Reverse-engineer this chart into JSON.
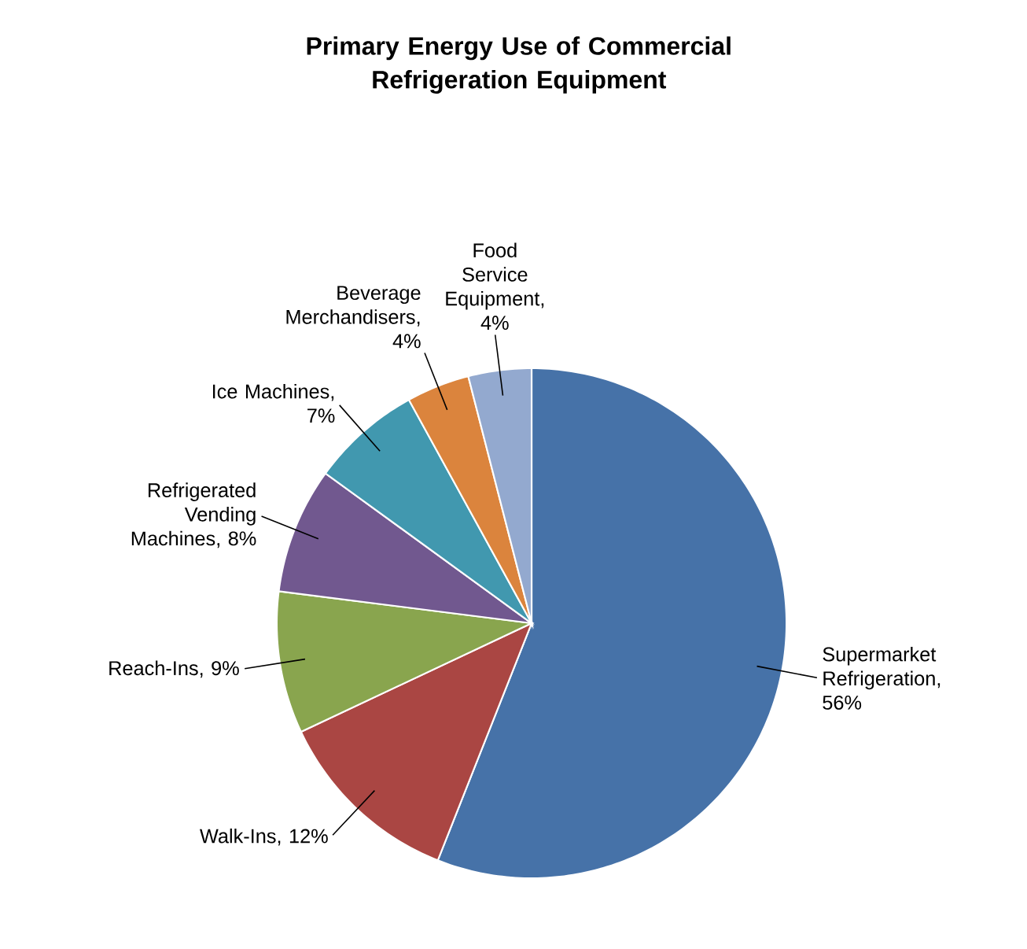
{
  "chart_data": {
    "type": "pie",
    "title": "Primary Energy Use of Commercial Refrigeration Equipment",
    "categories": [
      "Supermarket Refrigeration",
      "Walk-Ins",
      "Reach-Ins",
      "Refrigerated Vending Machines",
      "Ice Machines",
      "Beverage Merchandisers",
      "Food Service Equipment"
    ],
    "values": [
      56,
      12,
      9,
      8,
      7,
      4,
      4
    ],
    "value_labels": [
      ", 56%",
      ", 12%",
      ", 9%",
      ", 8%",
      ", 7%",
      ", 4%",
      ", 4%"
    ],
    "colors": [
      "#4672a8",
      "#aa4643",
      "#89a54e",
      "#71588f",
      "#4198af",
      "#db843d",
      "#93a9cf"
    ]
  }
}
